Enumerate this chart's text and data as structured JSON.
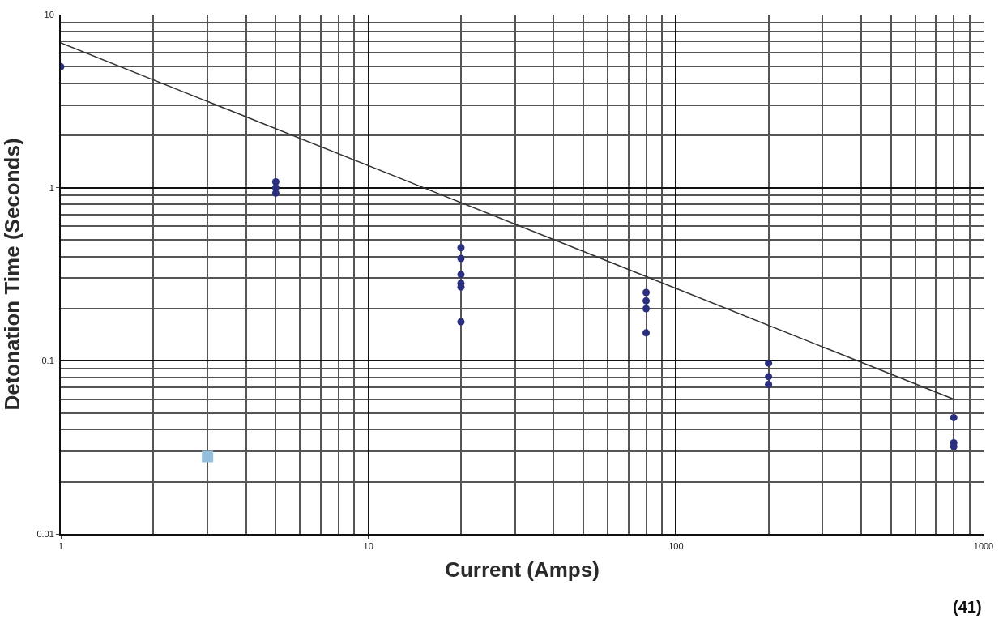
{
  "chart_data": {
    "type": "scatter",
    "xlabel": "Current (Amps)",
    "ylabel": "Detonation Time (Seconds)",
    "log": "xy",
    "grid": true,
    "xlim": [
      1,
      1000
    ],
    "xticks": [
      1,
      10,
      100,
      1000
    ],
    "ylim": [
      0.01,
      10
    ],
    "yticks": [
      0.01,
      0.1,
      1,
      10
    ],
    "series": [
      {
        "color": "#2b2f7f",
        "marker": "circle",
        "x": [
          1,
          5,
          5,
          5,
          20,
          20,
          20,
          20,
          20,
          20,
          80,
          80,
          80,
          80,
          200,
          200,
          200,
          800,
          800,
          800
        ],
        "values": [
          5,
          1.08,
          1.0,
          0.93,
          0.45,
          0.39,
          0.315,
          0.28,
          0.267,
          0.168,
          0.248,
          0.222,
          0.2,
          0.145,
          0.097,
          0.081,
          0.073,
          0.047,
          0.0336,
          0.032
        ]
      },
      {
        "type": "line",
        "color": "#333333",
        "marker": "none",
        "x": [
          1,
          800
        ],
        "values": [
          6.86,
          0.06
        ]
      },
      {
        "color": "#93bfdc",
        "marker": "square",
        "x": [
          3
        ],
        "values": [
          0.028
        ]
      }
    ],
    "annotations": [
      "(41)"
    ]
  }
}
